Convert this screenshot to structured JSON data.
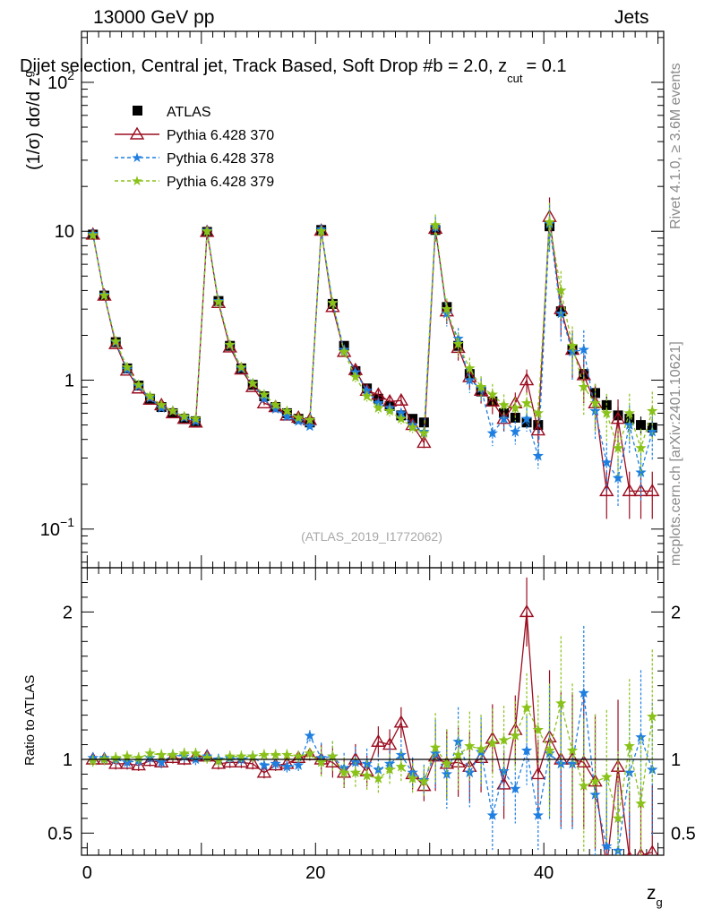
{
  "header": {
    "energy_label": "13000 GeV pp",
    "category_label": "Jets",
    "selection_title": "Dijet selection, Central jet, Track Based, Soft Drop #b = 2.0, z",
    "title_sub": "cut",
    "title_tail": "= 0.1"
  },
  "side_text": {
    "rivet": "Rivet 4.1.0, ≥ 3.6M events",
    "mcplots": "mcplots.cern.ch [arXiv:2401.10621]"
  },
  "colors": {
    "atlas": "#000000",
    "p370": "#9b0d20",
    "p378": "#1f7fe0",
    "p379": "#8ac21a"
  },
  "chart_data": [
    {
      "type": "scatter",
      "panel": "main",
      "ylabel": "(1/σ) dσ/d z",
      "ylabel_sub": "g",
      "yscale": "log",
      "xlim": [
        -0.5,
        50.5
      ],
      "ylim": [
        0.055,
        220
      ],
      "y_ticks": [
        {
          "v": 0.1,
          "b": "10",
          "e": "−1"
        },
        {
          "v": 1,
          "b": "1",
          "e": ""
        },
        {
          "v": 10,
          "b": "10",
          "e": ""
        },
        {
          "v": 100,
          "b": "10",
          "e": "2"
        }
      ],
      "watermark": "(ATLAS_2019_I1772062)",
      "legend_position": "top-left",
      "x": [
        0.5,
        1.5,
        2.5,
        3.5,
        4.5,
        5.5,
        6.5,
        7.5,
        8.5,
        9.5,
        10.5,
        11.5,
        12.5,
        13.5,
        14.5,
        15.5,
        16.5,
        17.5,
        18.5,
        19.5,
        20.5,
        21.5,
        22.5,
        23.5,
        24.5,
        25.5,
        26.5,
        27.5,
        28.5,
        29.5,
        30.5,
        31.5,
        32.5,
        33.5,
        34.5,
        35.5,
        36.5,
        37.5,
        38.5,
        39.5,
        40.5,
        41.5,
        42.5,
        43.5,
        44.5,
        45.5,
        46.5,
        47.5,
        48.5,
        49.5
      ],
      "series": [
        {
          "name": "ATLAS",
          "color_key": "atlas",
          "marker": "square",
          "values": [
            9.5,
            3.7,
            1.8,
            1.2,
            0.92,
            0.75,
            0.66,
            0.6,
            0.55,
            0.53,
            9.9,
            3.4,
            1.7,
            1.2,
            0.93,
            0.78,
            0.66,
            0.6,
            0.55,
            0.52,
            10.2,
            3.25,
            1.7,
            1.15,
            0.88,
            0.75,
            0.67,
            0.58,
            0.55,
            0.52,
            10.2,
            3.1,
            1.7,
            1.1,
            0.84,
            0.72,
            0.6,
            0.56,
            0.52,
            0.5,
            10.8,
            2.9,
            1.6,
            1.1,
            0.82,
            0.68,
            0.58,
            0.55,
            0.5,
            0.48
          ]
        },
        {
          "name": "Pythia 6.428 370",
          "color_key": "p370",
          "marker": "triangle",
          "values": [
            9.5,
            3.7,
            1.75,
            1.16,
            0.88,
            0.74,
            0.68,
            0.6,
            0.55,
            0.52,
            9.9,
            3.3,
            1.66,
            1.18,
            0.9,
            0.7,
            0.66,
            0.58,
            0.56,
            0.54,
            10.1,
            3.1,
            1.55,
            1.17,
            0.85,
            0.8,
            0.72,
            0.73,
            0.5,
            0.38,
            10.4,
            2.9,
            1.65,
            1.05,
            0.85,
            0.72,
            0.55,
            0.7,
            1.0,
            0.46,
            12.5,
            3.0,
            1.6,
            1.08,
            0.7,
            0.18,
            0.55,
            0.18,
            0.18,
            0.18
          ]
        },
        {
          "name": "Pythia 6.428 378",
          "color_key": "p378",
          "marker": "star",
          "values": [
            9.6,
            3.75,
            1.8,
            1.18,
            0.91,
            0.76,
            0.65,
            0.62,
            0.56,
            0.53,
            10.1,
            3.4,
            1.72,
            1.2,
            0.95,
            0.75,
            0.64,
            0.57,
            0.53,
            0.49,
            10.3,
            3.3,
            1.6,
            1.13,
            0.85,
            0.7,
            0.65,
            0.6,
            0.5,
            0.45,
            10.6,
            2.8,
            1.9,
            1.0,
            0.88,
            0.44,
            0.55,
            0.45,
            0.55,
            0.31,
            11.2,
            2.8,
            1.55,
            1.6,
            0.62,
            0.28,
            0.22,
            0.5,
            0.24,
            0.45
          ]
        },
        {
          "name": "Pythia 6.428 379",
          "color_key": "p379",
          "marker": "star",
          "values": [
            9.4,
            3.7,
            1.82,
            1.22,
            0.93,
            0.78,
            0.68,
            0.62,
            0.57,
            0.55,
            10.0,
            3.35,
            1.73,
            1.22,
            0.95,
            0.8,
            0.68,
            0.62,
            0.56,
            0.54,
            10.0,
            3.3,
            1.55,
            1.05,
            0.78,
            0.65,
            0.62,
            0.55,
            0.48,
            0.44,
            11.0,
            3.0,
            1.75,
            1.2,
            0.9,
            0.8,
            0.68,
            0.65,
            0.7,
            0.6,
            11.5,
            4.0,
            1.7,
            0.9,
            0.7,
            0.6,
            0.35,
            0.6,
            0.35,
            0.62
          ]
        }
      ]
    },
    {
      "type": "scatter",
      "panel": "ratio",
      "ylabel": "Ratio to ATLAS",
      "xlabel": "z",
      "xlabel_sub": "g",
      "xlim": [
        -0.5,
        50.5
      ],
      "ylim": [
        0.35,
        2.3
      ],
      "y_ticks": [
        0.5,
        1,
        2
      ],
      "x_ticks": [
        0,
        20,
        40
      ],
      "x": [
        0.5,
        1.5,
        2.5,
        3.5,
        4.5,
        5.5,
        6.5,
        7.5,
        8.5,
        9.5,
        10.5,
        11.5,
        12.5,
        13.5,
        14.5,
        15.5,
        16.5,
        17.5,
        18.5,
        19.5,
        20.5,
        21.5,
        22.5,
        23.5,
        24.5,
        25.5,
        26.5,
        27.5,
        28.5,
        29.5,
        30.5,
        31.5,
        32.5,
        33.5,
        34.5,
        35.5,
        36.5,
        37.5,
        38.5,
        39.5,
        40.5,
        41.5,
        42.5,
        43.5,
        44.5,
        45.5,
        46.5,
        47.5,
        48.5,
        49.5
      ],
      "series": [
        {
          "name": "Pythia 6.428 370",
          "color_key": "p370",
          "marker": "triangle",
          "values": [
            1.0,
            1.0,
            0.97,
            0.97,
            0.96,
            0.99,
            0.98,
            1.01,
            1.0,
            1.02,
            1.02,
            0.97,
            0.98,
            0.98,
            0.97,
            0.91,
            0.96,
            0.97,
            1.01,
            1.03,
            1.0,
            0.98,
            0.91,
            1.0,
            0.92,
            1.12,
            1.1,
            1.25,
            0.9,
            0.82,
            1.02,
            0.97,
            0.98,
            0.95,
            1.01,
            1.14,
            0.83,
            1.2,
            2.0,
            0.9,
            1.15,
            1.0,
            1.0,
            0.98,
            0.85,
            0.27,
            0.95,
            0.33,
            0.35,
            0.37
          ]
        },
        {
          "name": "Pythia 6.428 378",
          "color_key": "p378",
          "marker": "star",
          "values": [
            1.01,
            1.01,
            1.0,
            0.98,
            0.99,
            1.01,
            0.98,
            1.03,
            1.02,
            1.0,
            1.02,
            1.0,
            1.01,
            1.0,
            1.02,
            0.96,
            0.97,
            0.95,
            0.96,
            1.16,
            1.01,
            1.02,
            0.94,
            0.98,
            0.97,
            0.93,
            0.97,
            1.03,
            0.91,
            0.86,
            1.04,
            0.9,
            1.12,
            0.91,
            1.05,
            0.62,
            0.92,
            0.8,
            1.06,
            0.62,
            1.04,
            0.97,
            0.97,
            1.45,
            0.76,
            0.41,
            0.38,
            0.91,
            1.15,
            0.93
          ]
        },
        {
          "name": "Pythia 6.428 379",
          "color_key": "p379",
          "marker": "star",
          "values": [
            0.99,
            1.0,
            1.01,
            1.02,
            1.01,
            1.04,
            1.03,
            1.03,
            1.04,
            1.04,
            1.01,
            0.99,
            1.02,
            1.02,
            1.02,
            1.03,
            1.03,
            1.03,
            1.02,
            1.04,
            0.98,
            1.02,
            0.91,
            0.91,
            0.89,
            0.87,
            0.93,
            0.95,
            0.87,
            0.85,
            1.08,
            0.97,
            1.03,
            1.09,
            1.07,
            1.11,
            1.13,
            1.16,
            1.35,
            1.2,
            1.06,
            1.38,
            1.06,
            0.82,
            0.85,
            0.88,
            0.6,
            1.09,
            0.7,
            1.29
          ]
        }
      ]
    }
  ]
}
